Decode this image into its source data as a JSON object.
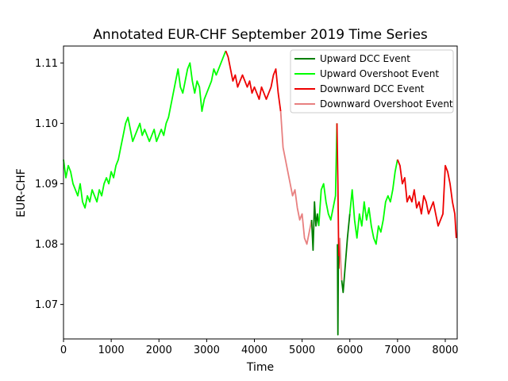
{
  "chart_data": {
    "type": "line",
    "title": "Annotated EUR-CHF September 2019 Time Series",
    "xlabel": "Time",
    "ylabel": "EUR-CHF",
    "xlim": [
      0,
      8250
    ],
    "ylim": [
      1.0643,
      1.1128
    ],
    "xticks": [
      0,
      1000,
      2000,
      3000,
      4000,
      5000,
      6000,
      7000,
      8000
    ],
    "yticks": [
      1.07,
      1.08,
      1.09,
      1.1,
      1.11
    ],
    "ytick_labels": [
      "1.07",
      "1.08",
      "1.09",
      "1.10",
      "1.11"
    ],
    "grid": false,
    "legend_position": "top-right",
    "legend": [
      {
        "name": "Upward DCC Event",
        "color": "#007f00"
      },
      {
        "name": "Upward Overshoot Event",
        "color": "#00ff00"
      },
      {
        "name": "Downward DCC Event",
        "color": "#ee0000"
      },
      {
        "name": "Downward Overshoot Event",
        "color": "#e88080"
      }
    ],
    "segments": [
      {
        "event": "Upward Overshoot Event",
        "color": "#00ff00",
        "x": [
          0,
          50,
          100,
          150,
          200,
          250,
          300,
          350,
          400,
          450,
          500,
          550,
          600,
          650,
          700,
          750,
          800,
          850,
          900,
          950,
          1000,
          1050,
          1100,
          1150,
          1200,
          1250,
          1300,
          1350,
          1400,
          1450,
          1500,
          1550,
          1600,
          1650,
          1700,
          1750,
          1800,
          1850,
          1900,
          1950,
          2000,
          2050,
          2100,
          2150,
          2200,
          2250,
          2300,
          2350,
          2400,
          2450,
          2500,
          2550,
          2600,
          2650,
          2700,
          2750,
          2800,
          2850,
          2900,
          2950,
          3000,
          3050,
          3100,
          3150,
          3200,
          3250,
          3300,
          3350,
          3400
        ],
        "y": [
          1.094,
          1.091,
          1.093,
          1.092,
          1.09,
          1.089,
          1.088,
          1.09,
          1.087,
          1.086,
          1.088,
          1.087,
          1.089,
          1.088,
          1.087,
          1.089,
          1.088,
          1.09,
          1.091,
          1.09,
          1.092,
          1.091,
          1.093,
          1.094,
          1.096,
          1.098,
          1.1,
          1.101,
          1.099,
          1.097,
          1.098,
          1.099,
          1.1,
          1.098,
          1.099,
          1.098,
          1.097,
          1.098,
          1.099,
          1.097,
          1.098,
          1.099,
          1.098,
          1.1,
          1.101,
          1.103,
          1.105,
          1.107,
          1.109,
          1.106,
          1.105,
          1.107,
          1.109,
          1.11,
          1.107,
          1.105,
          1.107,
          1.106,
          1.102,
          1.104,
          1.105,
          1.106,
          1.107,
          1.109,
          1.108,
          1.109,
          1.11,
          1.111,
          1.112
        ]
      },
      {
        "event": "Downward DCC Event",
        "color": "#ee0000",
        "x": [
          3400,
          3450,
          3500,
          3550,
          3600,
          3650,
          3700,
          3750,
          3800,
          3850,
          3900,
          3950,
          4000,
          4050,
          4100,
          4150,
          4200,
          4250,
          4300,
          4350,
          4400,
          4450,
          4500,
          4550
        ],
        "y": [
          1.112,
          1.111,
          1.109,
          1.107,
          1.108,
          1.106,
          1.107,
          1.108,
          1.107,
          1.106,
          1.107,
          1.105,
          1.106,
          1.105,
          1.104,
          1.106,
          1.105,
          1.104,
          1.105,
          1.106,
          1.108,
          1.109,
          1.105,
          1.102
        ]
      },
      {
        "event": "Downward Overshoot Event",
        "color": "#e88080",
        "x": [
          4550,
          4600,
          4650,
          4700,
          4750,
          4800,
          4850,
          4900,
          4950,
          5000,
          5050,
          5100,
          5150,
          5200
        ],
        "y": [
          1.102,
          1.096,
          1.094,
          1.092,
          1.09,
          1.088,
          1.089,
          1.086,
          1.084,
          1.085,
          1.081,
          1.08,
          1.082,
          1.084
        ]
      },
      {
        "event": "Upward DCC Event",
        "color": "#007f00",
        "x": [
          5200,
          5230,
          5260,
          5290,
          5320,
          5350
        ],
        "y": [
          1.084,
          1.079,
          1.087,
          1.083,
          1.085,
          1.083
        ]
      },
      {
        "event": "Upward Overshoot Event",
        "color": "#00ff00",
        "x": [
          5350,
          5400,
          5450,
          5500,
          5550,
          5600,
          5650,
          5700,
          5730
        ],
        "y": [
          1.083,
          1.089,
          1.09,
          1.087,
          1.085,
          1.084,
          1.086,
          1.088,
          1.1
        ]
      },
      {
        "event": "Downward DCC Event",
        "color": "#ee0000",
        "x": [
          5730,
          5750,
          5770,
          5790
        ],
        "y": [
          1.1,
          1.09,
          1.076,
          1.081
        ]
      },
      {
        "event": "Upward DCC Event",
        "color": "#007f00",
        "x": [
          5740,
          5750,
          5760
        ],
        "y": [
          1.08,
          1.065,
          1.078
        ]
      },
      {
        "event": "Downward Overshoot Event",
        "color": "#e88080",
        "x": [
          5790,
          5810,
          5830
        ],
        "y": [
          1.081,
          1.077,
          1.074
        ]
      },
      {
        "event": "Upward DCC Event",
        "color": "#007f00",
        "x": [
          5830,
          5860,
          5900,
          5950,
          6000
        ],
        "y": [
          1.074,
          1.072,
          1.076,
          1.081,
          1.085
        ]
      },
      {
        "event": "Upward Overshoot Event",
        "color": "#00ff00",
        "x": [
          6000,
          6050,
          6100,
          6150,
          6200,
          6250,
          6300,
          6350,
          6400,
          6450,
          6500,
          6550,
          6600,
          6650,
          6700,
          6750,
          6800,
          6850,
          6900,
          6950,
          7000
        ],
        "y": [
          1.085,
          1.089,
          1.084,
          1.081,
          1.085,
          1.083,
          1.087,
          1.084,
          1.086,
          1.083,
          1.081,
          1.08,
          1.083,
          1.082,
          1.084,
          1.087,
          1.088,
          1.087,
          1.089,
          1.092,
          1.094
        ]
      },
      {
        "event": "Downward DCC Event",
        "color": "#ee0000",
        "x": [
          7000,
          7050,
          7100,
          7150,
          7200,
          7250,
          7300,
          7350,
          7400,
          7450,
          7500,
          7550,
          7600,
          7650,
          7700,
          7750,
          7800,
          7850,
          7900,
          7950,
          8000,
          8050,
          8100,
          8150,
          8200,
          8230
        ],
        "y": [
          1.094,
          1.093,
          1.09,
          1.091,
          1.087,
          1.088,
          1.087,
          1.089,
          1.086,
          1.087,
          1.085,
          1.088,
          1.087,
          1.085,
          1.086,
          1.087,
          1.085,
          1.083,
          1.084,
          1.085,
          1.093,
          1.092,
          1.09,
          1.087,
          1.085,
          1.081
        ]
      }
    ]
  }
}
